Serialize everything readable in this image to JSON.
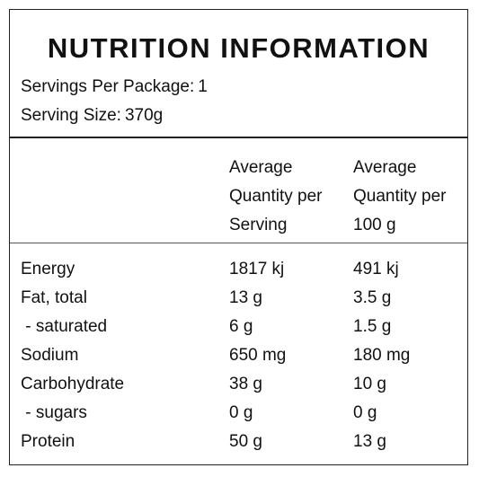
{
  "panel": {
    "title": "NUTRITION INFORMATION",
    "servings_label": "Servings Per Package:",
    "servings_value": "1",
    "serving_size_label": "Serving Size:",
    "serving_size_value": "370g"
  },
  "columns": {
    "per_serving": [
      "Average",
      "Quantity per",
      "Serving"
    ],
    "per_100g": [
      "Average",
      "Quantity per",
      "100 g"
    ]
  },
  "rows": [
    {
      "nutrient": "Energy",
      "per_serving": "1817 kj",
      "per_100g": "491 kj"
    },
    {
      "nutrient": "Fat, total",
      "per_serving": "13 g",
      "per_100g": "3.5 g"
    },
    {
      "nutrient": " - saturated",
      "per_serving": "6 g",
      "per_100g": "1.5 g"
    },
    {
      "nutrient": "Sodium",
      "per_serving": "650 mg",
      "per_100g": "180 mg"
    },
    {
      "nutrient": "Carbohydrate",
      "per_serving": "38 g",
      "per_100g": "10 g"
    },
    {
      "nutrient": " - sugars",
      "per_serving": "0 g",
      "per_100g": "0 g"
    },
    {
      "nutrient": "Protein",
      "per_serving": "50 g",
      "per_100g": "13 g"
    }
  ]
}
